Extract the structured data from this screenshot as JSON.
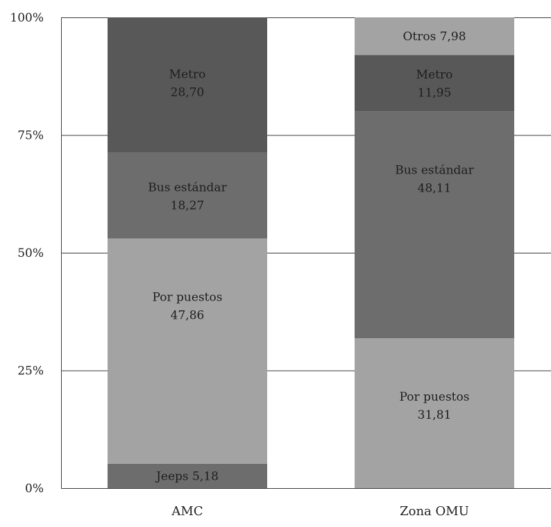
{
  "chart_data": {
    "type": "bar",
    "stacked": true,
    "percent_stacked": true,
    "categories": [
      "AMC",
      "Zona OMU"
    ],
    "series": [
      {
        "name": "Jeeps",
        "values": [
          5.18,
          null
        ],
        "color": "#6d6d6d"
      },
      {
        "name": "Por puestos",
        "values": [
          47.86,
          31.81
        ],
        "color": "#a3a3a3"
      },
      {
        "name": "Bus estándar",
        "values": [
          18.27,
          48.11
        ],
        "color": "#6d6d6d"
      },
      {
        "name": "Metro",
        "values": [
          28.7,
          11.95
        ],
        "color": "#585858"
      },
      {
        "name": "Otros",
        "values": [
          null,
          7.98
        ],
        "color": "#a3a3a3"
      }
    ],
    "segment_labels": [
      [
        {
          "series": "Jeeps",
          "lines": [
            "Jeeps 5,18"
          ]
        },
        {
          "series": "Por puestos",
          "lines": [
            "Por puestos",
            "47,86"
          ]
        },
        {
          "series": "Bus estándar",
          "lines": [
            "Bus estándar",
            "18,27"
          ]
        },
        {
          "series": "Metro",
          "lines": [
            "Metro",
            "28,70"
          ]
        }
      ],
      [
        {
          "series": "Por puestos",
          "lines": [
            "Por puestos",
            "31,81"
          ]
        },
        {
          "series": "Bus estándar",
          "lines": [
            "Bus estándar",
            "48,11"
          ]
        },
        {
          "series": "Metro",
          "lines": [
            "Metro",
            "11,95"
          ]
        },
        {
          "series": "Otros",
          "lines": [
            "Otros 7,98"
          ]
        }
      ]
    ],
    "yticks": [
      0,
      25,
      50,
      75,
      100
    ],
    "ytick_labels": [
      "0%",
      "25%",
      "50%",
      "75%",
      "100%"
    ],
    "ylim": [
      0,
      100
    ],
    "grid": true,
    "legend": "none"
  }
}
